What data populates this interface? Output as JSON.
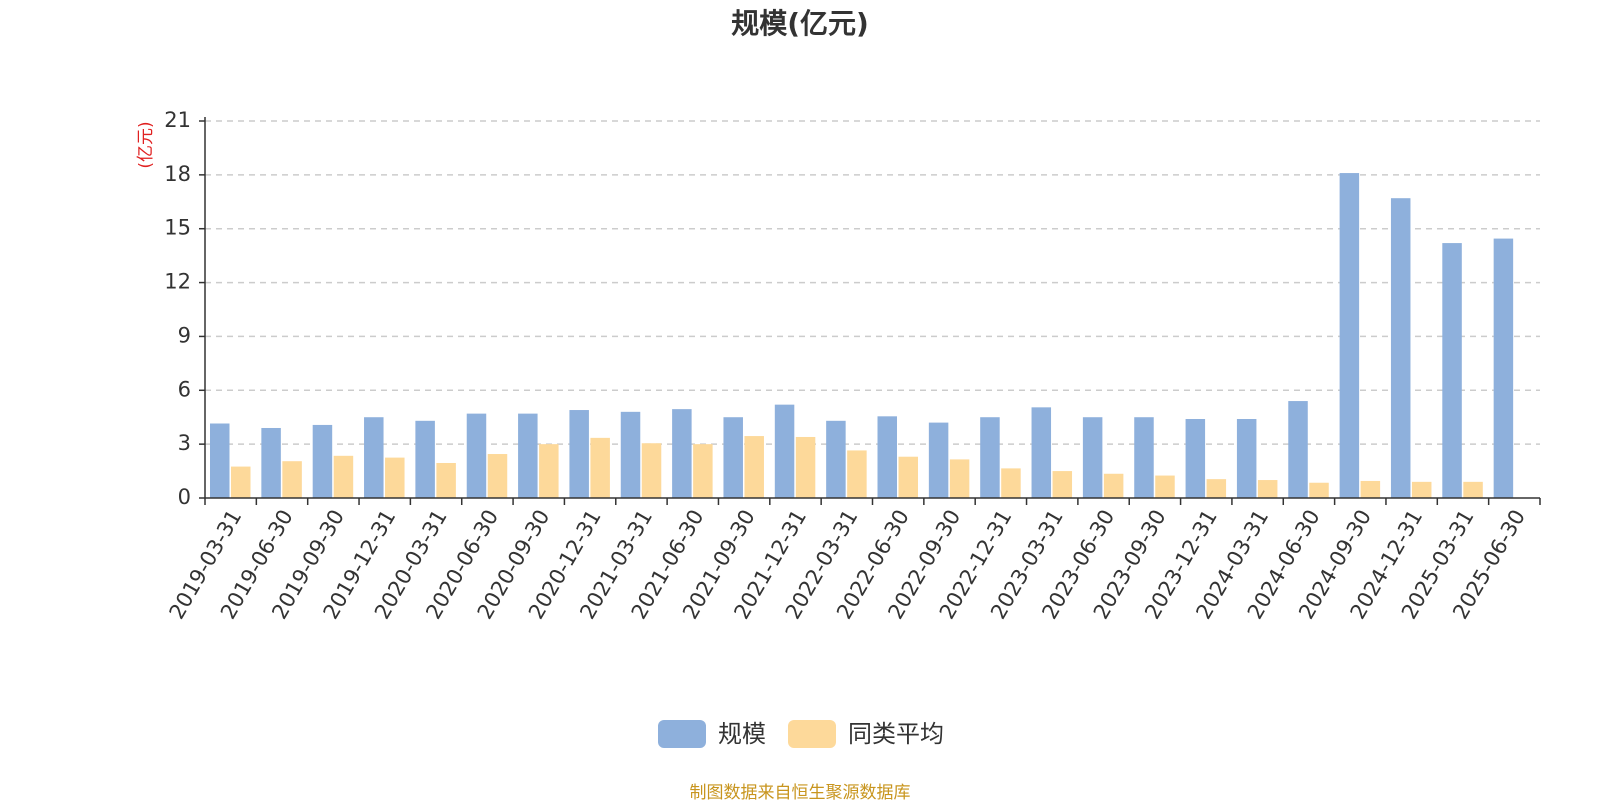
{
  "chart_data": {
    "type": "bar",
    "title": "规模(亿元)",
    "ylabel": "(亿元)",
    "xlabel": "",
    "ylim": [
      0,
      21
    ],
    "yticks": [
      0,
      3,
      6,
      9,
      12,
      15,
      18,
      21
    ],
    "grid": true,
    "legend_position": "bottom",
    "categories": [
      "2019-03-31",
      "2019-06-30",
      "2019-09-30",
      "2019-12-31",
      "2020-03-31",
      "2020-06-30",
      "2020-09-30",
      "2020-12-31",
      "2021-03-31",
      "2021-06-30",
      "2021-09-30",
      "2021-12-31",
      "2022-03-31",
      "2022-06-30",
      "2022-09-30",
      "2022-12-31",
      "2023-03-31",
      "2023-06-30",
      "2023-09-30",
      "2023-12-31",
      "2024-03-31",
      "2024-06-30",
      "2024-09-30",
      "2024-12-31",
      "2025-03-31",
      "2025-06-30"
    ],
    "series": [
      {
        "name": "规模",
        "color": "#8eb0dc",
        "values": [
          4.15,
          3.9,
          4.07,
          4.5,
          4.3,
          4.7,
          4.7,
          4.9,
          4.8,
          4.95,
          4.5,
          5.2,
          4.3,
          4.55,
          4.2,
          4.5,
          5.05,
          4.5,
          4.5,
          4.4,
          4.4,
          5.4,
          18.1,
          16.7,
          14.2,
          14.45
        ]
      },
      {
        "name": "同类平均",
        "color": "#fdd99a",
        "values": [
          1.75,
          2.05,
          2.35,
          2.25,
          1.95,
          2.45,
          3.0,
          3.35,
          3.05,
          3.0,
          3.45,
          3.4,
          2.65,
          2.3,
          2.15,
          1.65,
          1.5,
          1.35,
          1.25,
          1.05,
          1.0,
          0.85,
          0.95,
          0.9,
          0.9,
          null
        ]
      }
    ]
  },
  "source_note": "制图数据来自恒生聚源数据库"
}
